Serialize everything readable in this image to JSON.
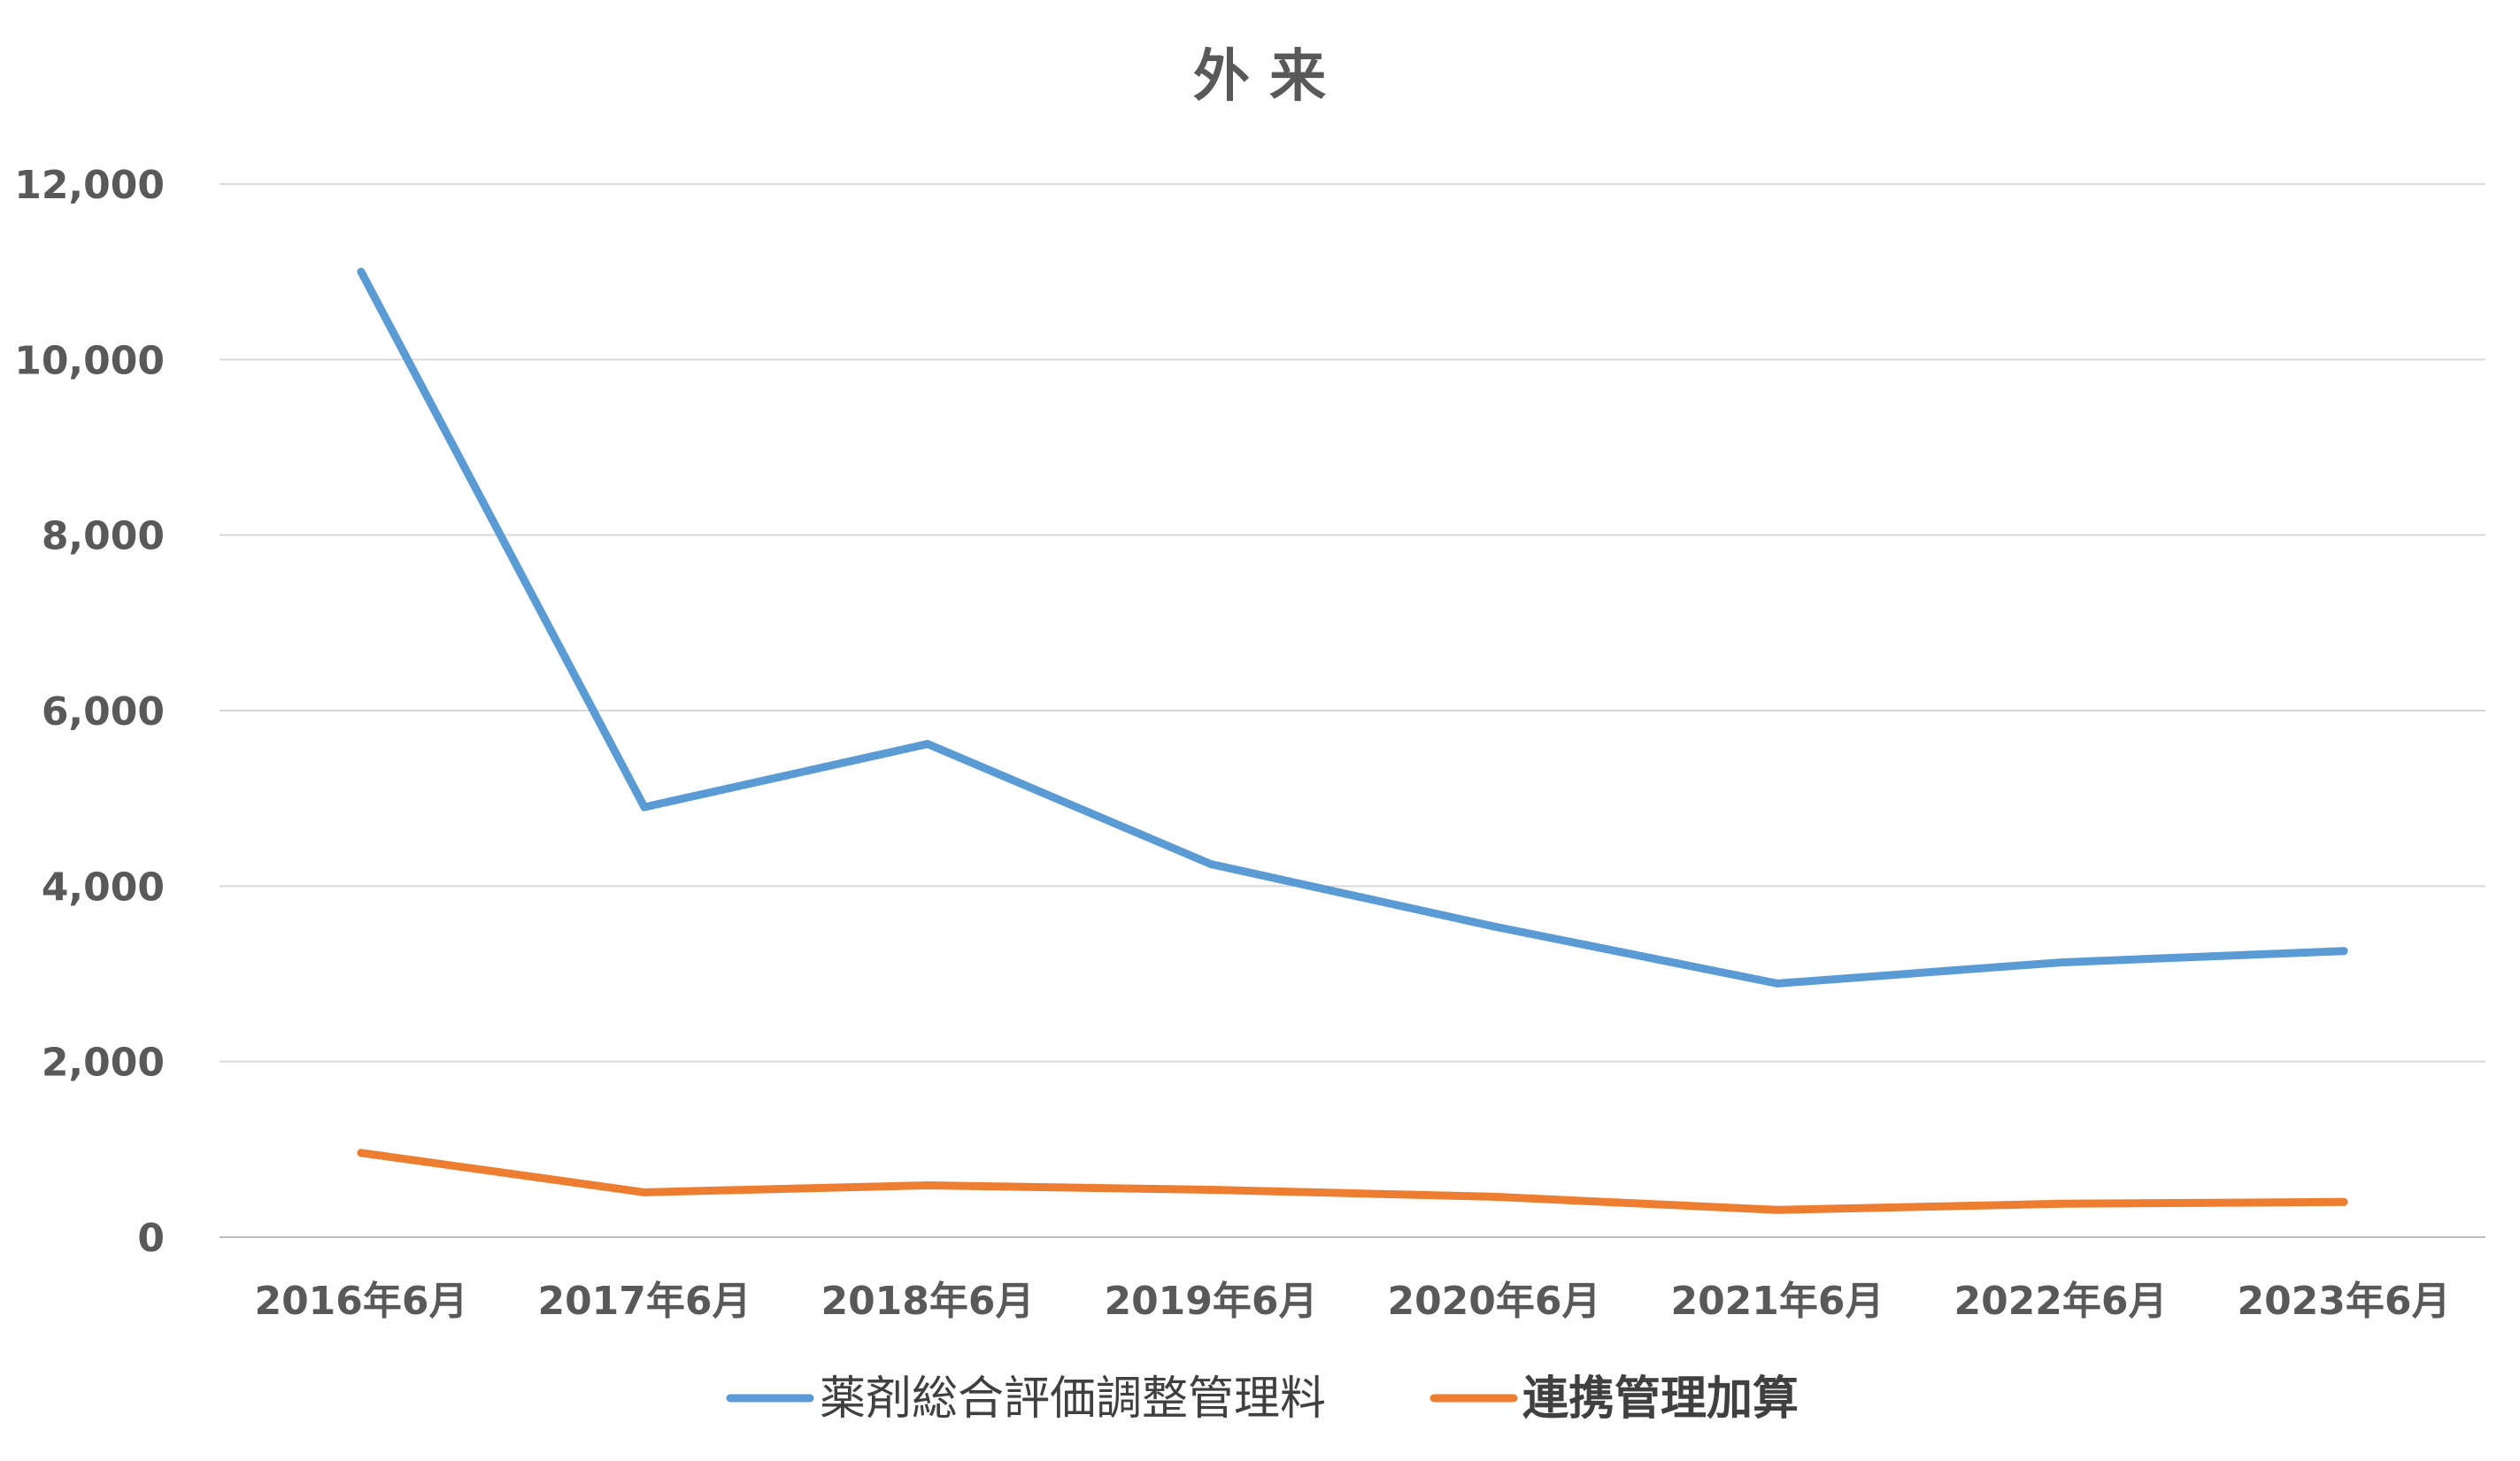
{
  "chart_data": {
    "type": "line",
    "title": "外 来",
    "xlabel": "",
    "ylabel": "",
    "categories": [
      "2016年6月",
      "2017年6月",
      "2018年6月",
      "2019年6月",
      "2020年6月",
      "2021年6月",
      "2022年6月",
      "2023年6月"
    ],
    "ylim": [
      0,
      12000
    ],
    "yticks": [
      0,
      2000,
      4000,
      6000,
      8000,
      10000,
      12000
    ],
    "ytick_labels": [
      "0",
      "2,000",
      "4,000",
      "6,000",
      "8,000",
      "10,000",
      "12,000"
    ],
    "grid": true,
    "legend_position": "bottom",
    "series": [
      {
        "name": "薬剤総合評価調整管理料",
        "color": "#5B9BD5",
        "values": [
          11000,
          4900,
          5620,
          4250,
          3540,
          2890,
          3130,
          3260
        ]
      },
      {
        "name": "連携管理加算",
        "color": "#ED7D31",
        "values": [
          960,
          510,
          590,
          540,
          460,
          310,
          380,
          400
        ]
      }
    ]
  }
}
